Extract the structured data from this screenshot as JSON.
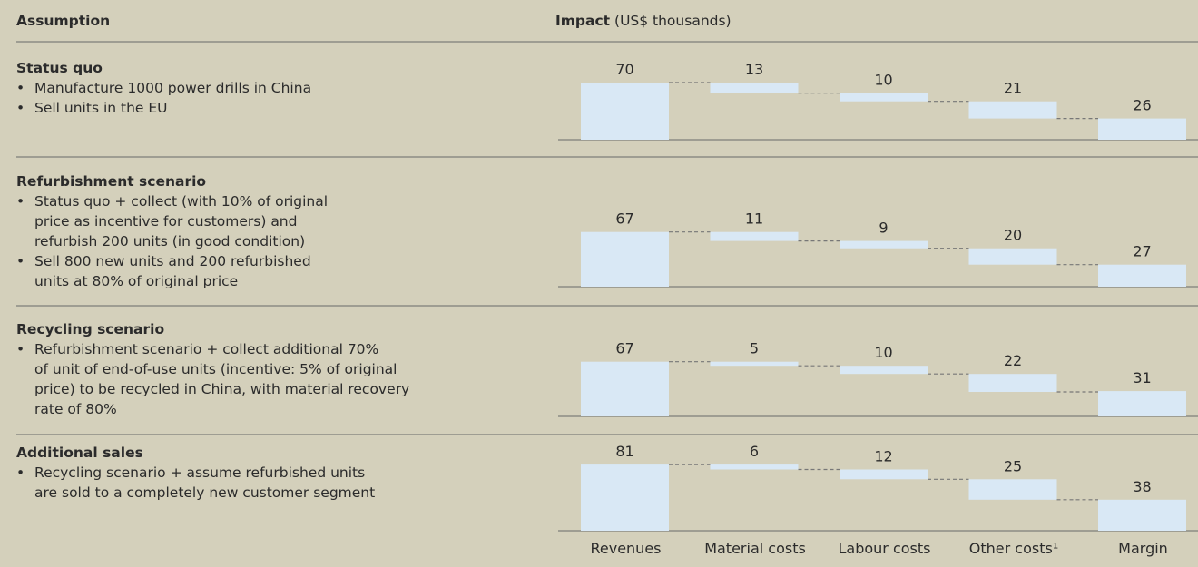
{
  "header": {
    "assumption": "Assumption",
    "impact_label": "Impact",
    "impact_unit": "(US$ thousands)"
  },
  "rows": [
    {
      "title": "Status quo",
      "bullets": [
        [
          "Manufacture 1000 power drills in China"
        ],
        [
          "Sell units in the EU"
        ]
      ]
    },
    {
      "title": "Refurbishment scenario",
      "bullets": [
        [
          "Status quo + collect (with 10% of original",
          "price as incentive for customers) and",
          "refurbish 200 units (in good condition)"
        ],
        [
          "Sell 800 new units and 200 refurbished",
          "units at 80% of original price"
        ]
      ]
    },
    {
      "title": "Recycling scenario",
      "bullets": [
        [
          "Refurbishment scenario + collect additional 70%",
          "of unit of end-of-use units (incentive: 5% of original",
          "price) to be recycled in China, with material recovery",
          "rate of 80%"
        ]
      ]
    },
    {
      "title": "Additional sales",
      "bullets": [
        [
          "Recycling scenario + assume refurbished units",
          "are sold to a completely new customer segment"
        ]
      ]
    }
  ],
  "chart_data": [
    {
      "type": "waterfall",
      "values": [
        70,
        13,
        10,
        21,
        26
      ],
      "color": "#d9e8f5"
    },
    {
      "type": "waterfall",
      "values": [
        67,
        11,
        9,
        20,
        27
      ],
      "color": "#d9e8f5"
    },
    {
      "type": "waterfall",
      "values": [
        67,
        5,
        10,
        22,
        31
      ],
      "color": "#d9e8f5"
    },
    {
      "type": "waterfall",
      "values": [
        81,
        6,
        12,
        25,
        38
      ],
      "color": "#d9e8f5",
      "categories": [
        "Revenues",
        "Material costs",
        "Labour costs",
        "Other costs¹",
        "Margin"
      ]
    }
  ]
}
